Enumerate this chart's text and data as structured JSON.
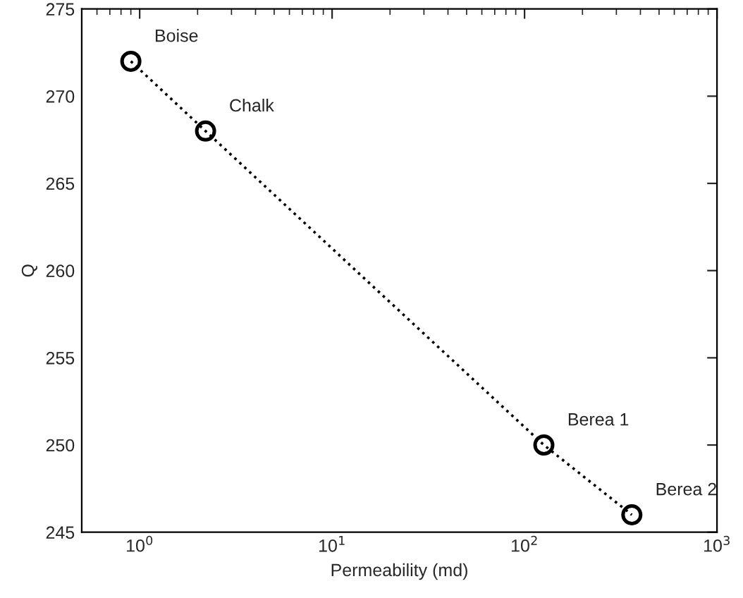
{
  "chart_data": {
    "type": "line",
    "xlabel": "Permeability (md)",
    "ylabel": "Q",
    "x": [
      0.9,
      2.2,
      126,
      361
    ],
    "series": [
      {
        "color": "#000000",
        "values": [
          272,
          268,
          250,
          246
        ]
      }
    ],
    "marker": "circle",
    "line_style": "dotted",
    "log": "x",
    "grid": false,
    "legend": false,
    "xlim": [
      0.5,
      1000
    ],
    "xticks": [
      {
        "value": 1,
        "label": "10$^{0}$"
      },
      {
        "value": 10,
        "label": "10$^{1}$"
      },
      {
        "value": 100,
        "label": "10$^{2}$"
      },
      {
        "value": 1000,
        "label": "10$^{3}$"
      }
    ],
    "ylim": [
      245,
      275
    ],
    "yticks": [
      245,
      250,
      255,
      260,
      265,
      270,
      275
    ],
    "annotations": [
      {
        "text": "Boise",
        "x": 0.9,
        "y": 272
      },
      {
        "text": "Chalk",
        "x": 2.2,
        "y": 268
      },
      {
        "text": "Berea 1",
        "x": 126,
        "y": 250
      },
      {
        "text": "Berea 2",
        "x": 361,
        "y": 246
      }
    ]
  }
}
